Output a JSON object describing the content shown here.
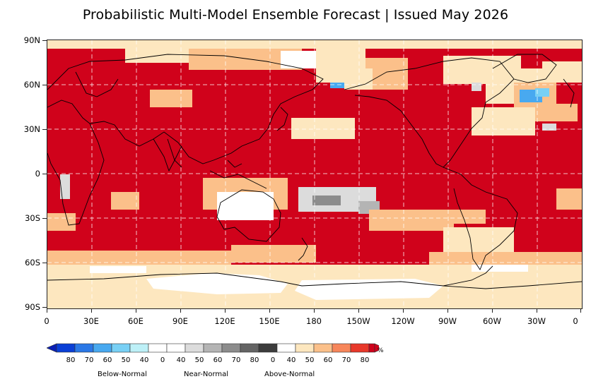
{
  "title": "Probabilistic Multi-Model Ensemble Forecast | Issued May 2026",
  "map": {
    "projection": "equirectangular, centered on 180",
    "latitude_labels": [
      "90N",
      "60N",
      "30N",
      "0",
      "30S",
      "60S",
      "90S"
    ],
    "longitude_labels": [
      "0",
      "30E",
      "60E",
      "90E",
      "120E",
      "150E",
      "180",
      "150W",
      "120W",
      "90W",
      "60W",
      "30W",
      "0"
    ],
    "gridlines": "dashed white",
    "colors": {
      "above_80": "#d0021b",
      "above_70": "#e8382a",
      "above_60": "#f7865a",
      "above_50": "#fbc08a",
      "above_40": "#fde7bf",
      "near_40": "#dcdcdc",
      "near_50": "#b4b4b4",
      "near_60": "#8c8c8c",
      "below_40": "#bdf0f7",
      "below_50": "#5fd2f0",
      "below_60": "#48a9f0",
      "below_70": "#2278e0",
      "neutral": "#ffffff",
      "coastline": "#000000"
    }
  },
  "legend": {
    "unit": "%",
    "bins": [
      {
        "label": "80",
        "color": "#0a3fd6"
      },
      {
        "label": "70",
        "color": "#2a78e6"
      },
      {
        "label": "60",
        "color": "#48a9f0"
      },
      {
        "label": "50",
        "color": "#78d0f5"
      },
      {
        "label": "40",
        "color": "#bdf0f7"
      },
      {
        "label": "0",
        "color": "#ffffff"
      },
      {
        "label": "40",
        "color": "#ffffff"
      },
      {
        "label": "50",
        "color": "#dcdcdc"
      },
      {
        "label": "60",
        "color": "#b4b4b4"
      },
      {
        "label": "70",
        "color": "#8c8c8c"
      },
      {
        "label": "80",
        "color": "#646464"
      },
      {
        "label": "0",
        "color": "#3c3c3c"
      },
      {
        "label": "40",
        "color": "#ffffff"
      },
      {
        "label": "50",
        "color": "#fde7bf"
      },
      {
        "label": "60",
        "color": "#fbc08a"
      },
      {
        "label": "70",
        "color": "#f7865a"
      },
      {
        "label": "80",
        "color": "#e8382a"
      }
    ],
    "end_color": "#d0021b",
    "categories": [
      "Below-Normal",
      "Near-Normal",
      "Above-Normal"
    ]
  }
}
